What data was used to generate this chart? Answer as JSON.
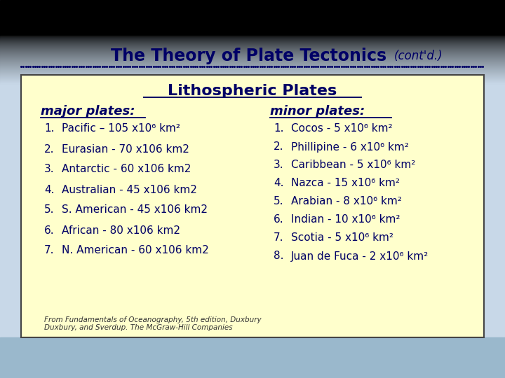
{
  "title_main": "The Theory of Plate Tectonics",
  "title_cont": "(cont'd.)",
  "box_title": "Lithospheric Plates",
  "major_heading": "major plates:",
  "minor_heading": "minor plates:",
  "major_plates": [
    "Pacific – 105 x10⁶ km²",
    "Eurasian - 70 x106 km2",
    "Antarctic - 60 x106 km2",
    "Australian - 45 x106 km2",
    "S. American - 45 x106 km2",
    "African - 80 x106 km2",
    "N. American - 60 x106 km2"
  ],
  "minor_plates": [
    "Cocos - 5 x10⁶ km²",
    "Phillipine - 6 x10⁶ km²",
    "Caribbean - 5 x10⁶ km²",
    "Nazca - 15 x10⁶ km²",
    "Arabian - 8 x10⁶ km²",
    "Indian - 10 x10⁶ km²",
    "Scotia - 5 x10⁶ km²",
    "Juan de Fuca - 2 x10⁶ km²"
  ],
  "footnote_line1": "From Fundamentals of Oceanography, 5th edition, Duxbury",
  "footnote_line2": "Duxbury, and Sverdup. The McGraw-Hill Companies",
  "bg_slide_color": "#c8d8e8",
  "box_color": "#ffffcc",
  "text_color": "#000066",
  "title_color": "#000066",
  "dotted_line_color": "#000066",
  "fig_width": 7.2,
  "fig_height": 5.4
}
